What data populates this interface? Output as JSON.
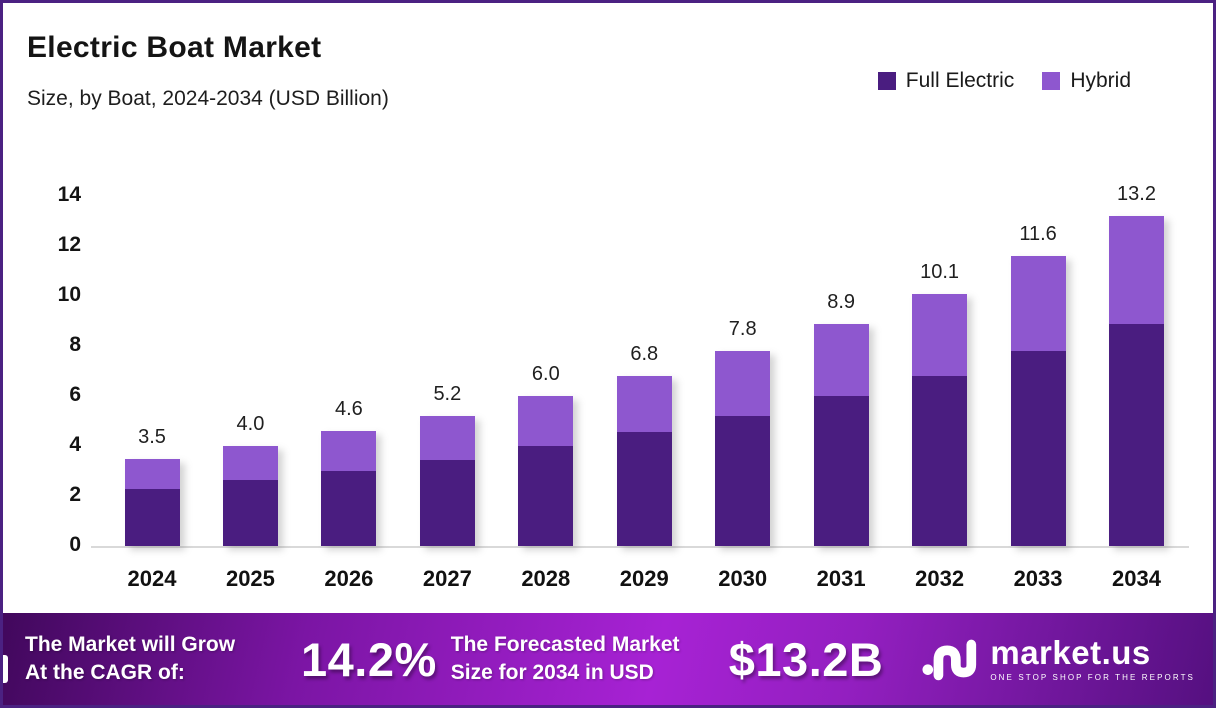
{
  "header": {
    "title": "Electric Boat Market",
    "subtitle": "Size, by Boat, 2024-2034 (USD Billion)"
  },
  "colors": {
    "full_electric": "#4a1d80",
    "hybrid": "#8e57cf",
    "border": "#4b2182",
    "baseline": "#d9d9d9"
  },
  "legend": {
    "items": [
      {
        "label": "Full Electric",
        "color": "#4a1d80"
      },
      {
        "label": "Hybrid",
        "color": "#8e57cf"
      }
    ]
  },
  "chart_data": {
    "type": "bar",
    "stacked": true,
    "title": "Electric Boat Market",
    "subtitle": "Size, by Boat, 2024-2034 (USD Billion)",
    "categories": [
      "2024",
      "2025",
      "2026",
      "2027",
      "2028",
      "2029",
      "2030",
      "2031",
      "2032",
      "2033",
      "2034"
    ],
    "series": [
      {
        "name": "Full Electric",
        "color": "#4a1d80",
        "values": [
          2.3,
          2.65,
          3.0,
          3.45,
          4.0,
          4.55,
          5.2,
          6.0,
          6.8,
          7.8,
          8.9
        ]
      },
      {
        "name": "Hybrid",
        "color": "#8e57cf",
        "values": [
          1.2,
          1.35,
          1.6,
          1.75,
          2.0,
          2.25,
          2.6,
          2.9,
          3.3,
          3.8,
          4.3
        ]
      }
    ],
    "totals": [
      "3.5",
      "4.0",
      "4.6",
      "5.2",
      "6.0",
      "6.8",
      "7.8",
      "8.9",
      "10.1",
      "11.6",
      "13.2"
    ],
    "ylim": [
      0,
      14
    ],
    "ytick_step": 2,
    "grid": false,
    "legend_position": "top-right"
  },
  "footer": {
    "left_line1": "The Market will Grow",
    "left_line2": "At the CAGR of:",
    "cagr": "14.2%",
    "mid_line1": "The Forecasted Market",
    "mid_line2": "Size for 2034 in USD",
    "forecast_value": "$13.2B",
    "brand": "market.us",
    "tagline": "ONE STOP SHOP FOR THE REPORTS"
  }
}
